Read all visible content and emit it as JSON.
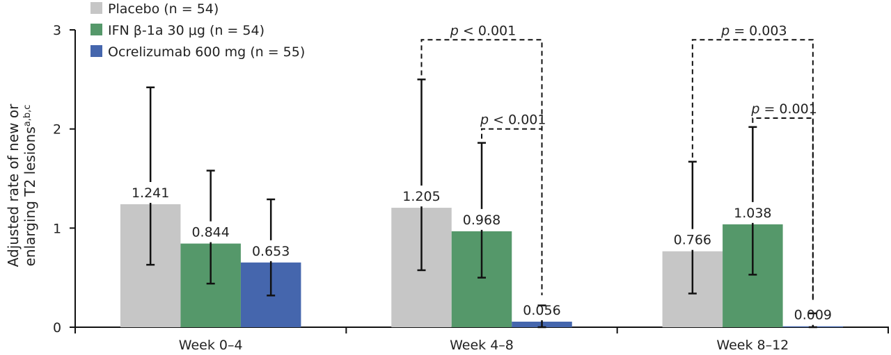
{
  "chart_data": {
    "type": "bar",
    "title": "",
    "xlabel": "",
    "ylabel_line1": "Adjusted rate of new or",
    "ylabel_line2": "enlarging T2 lesions",
    "ylabel_superscript": "a,b,c",
    "ylim": [
      0,
      3
    ],
    "yticks": [
      "0",
      "1",
      "2",
      "3"
    ],
    "grid": false,
    "legend_position": "top-left",
    "categories": [
      "Week 0–4",
      "Week 4–8",
      "Week 8–12"
    ],
    "series": [
      {
        "name": "Placebo (n = 54)",
        "color": "#c6c6c6",
        "values": [
          1.241,
          1.205,
          0.766
        ],
        "labels": [
          "1.241",
          "1.205",
          "0.766"
        ],
        "error_low": [
          0.63,
          0.575,
          0.34
        ],
        "error_high": [
          2.42,
          2.5,
          1.67
        ]
      },
      {
        "name": "IFN β-1a 30 μg (n = 54)",
        "color": "#55986a",
        "values": [
          0.844,
          0.968,
          1.038
        ],
        "labels": [
          "0.844",
          "0.968",
          "1.038"
        ],
        "error_low": [
          0.44,
          0.5,
          0.53
        ],
        "error_high": [
          1.58,
          1.86,
          2.02
        ]
      },
      {
        "name": "Ocrelizumab 600 mg (n = 55)",
        "color": "#4566ad",
        "values": [
          0.653,
          0.056,
          0.009
        ],
        "labels": [
          "0.653",
          "0.056",
          "0.009"
        ],
        "error_low": [
          0.32,
          0.0,
          0.0
        ],
        "error_high": [
          1.29,
          0.22,
          0.14
        ]
      }
    ],
    "annotations": [
      {
        "category": 1,
        "from_series": 0,
        "to_series": 2,
        "level": 2.9,
        "p_symbol": "p",
        "text": " < 0.001"
      },
      {
        "category": 1,
        "from_series": 1,
        "to_series": 2,
        "level": 2.0,
        "p_symbol": "p",
        "text": " < 0.001"
      },
      {
        "category": 2,
        "from_series": 0,
        "to_series": 2,
        "level": 2.9,
        "p_symbol": "p",
        "text": " = 0.003"
      },
      {
        "category": 2,
        "from_series": 1,
        "to_series": 2,
        "level": 2.11,
        "p_symbol": "p",
        "text": " = 0.001"
      }
    ]
  }
}
